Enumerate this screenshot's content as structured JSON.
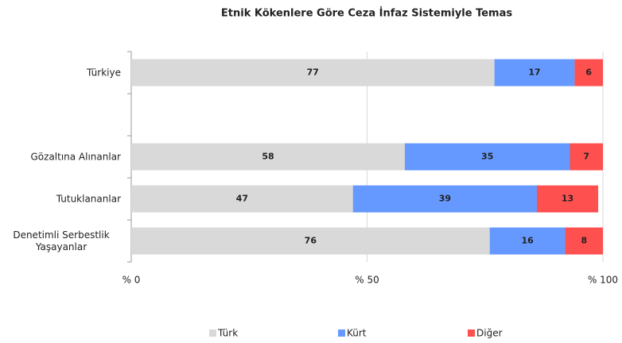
{
  "chart_data": {
    "type": "stacked-barh",
    "title": "Etnik Kökenlere Göre Ceza İnfaz Sistemiyle Temas",
    "categories": [
      "Türkiye",
      null,
      "Gözaltına Alınanlar",
      "Tutuklananlar",
      "Denetimli Serbestlik Yaşayanlar"
    ],
    "series": [
      {
        "name": "Türk",
        "color": "#d9d9d9",
        "values": [
          77,
          null,
          58,
          47,
          76
        ]
      },
      {
        "name": "Kürt",
        "color": "#6699ff",
        "values": [
          17,
          null,
          35,
          39,
          16
        ]
      },
      {
        "name": "Diğer",
        "color": "#ff5050",
        "values": [
          6,
          null,
          7,
          13,
          8
        ]
      }
    ],
    "xlim": [
      0,
      100
    ],
    "xticks": [
      {
        "value": 0,
        "label": "% 0"
      },
      {
        "value": 50,
        "label": "% 50"
      },
      {
        "value": 100,
        "label": "% 100"
      }
    ],
    "grid": true,
    "legend": "bottom"
  }
}
